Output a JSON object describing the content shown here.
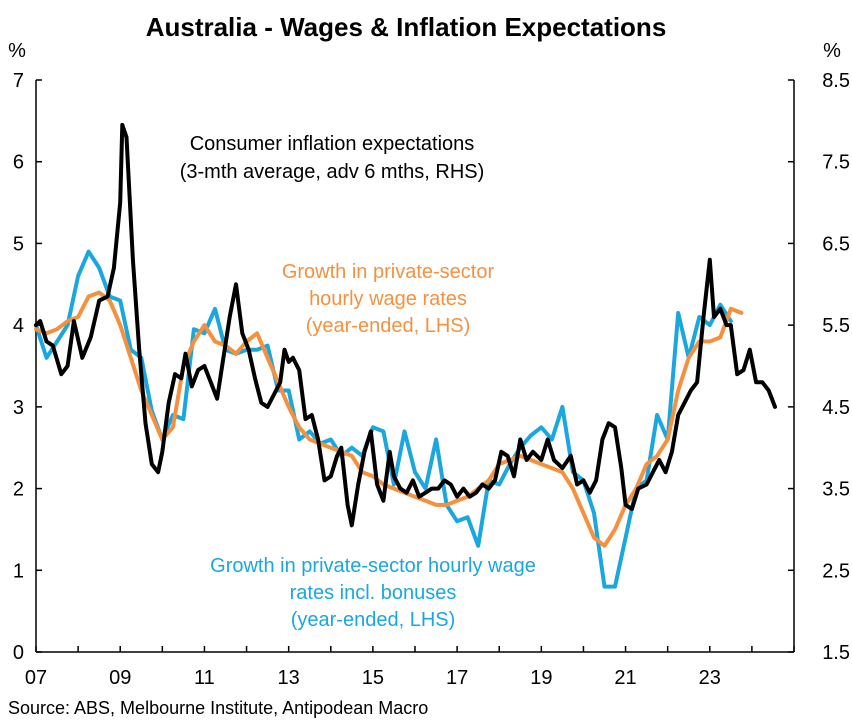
{
  "chart_data": {
    "type": "line",
    "title": "Australia - Wages & Inflation Expectations",
    "source": "Source: ABS, Melbourne Institute, Antipodean Macro",
    "left_axis": {
      "unit": "%",
      "range": [
        0,
        7
      ],
      "ticks": [
        "0",
        "1",
        "2",
        "3",
        "4",
        "5",
        "6",
        "7"
      ]
    },
    "right_axis": {
      "unit": "%",
      "range": [
        1.5,
        8.5
      ],
      "ticks": [
        "1.5",
        "2.5",
        "3.5",
        "4.5",
        "5.5",
        "6.5",
        "7.5",
        "8.5"
      ]
    },
    "x_axis": {
      "range": [
        2007,
        2025
      ],
      "ticks": [
        {
          "label": "07",
          "value": 2007
        },
        {
          "label": "09",
          "value": 2009
        },
        {
          "label": "11",
          "value": 2011
        },
        {
          "label": "13",
          "value": 2013
        },
        {
          "label": "15",
          "value": 2015
        },
        {
          "label": "17",
          "value": 2017
        },
        {
          "label": "19",
          "value": 2019
        },
        {
          "label": "21",
          "value": 2021
        },
        {
          "label": "23",
          "value": 2023
        }
      ]
    },
    "series": [
      {
        "name": "Growth in private-sector hourly wage rates incl. bonuses (year-ended, LHS)",
        "axis": "left",
        "color": "#1aa7e0",
        "points": [
          [
            2007.0,
            4.0
          ],
          [
            2007.25,
            3.6
          ],
          [
            2007.5,
            3.8
          ],
          [
            2007.75,
            4.0
          ],
          [
            2008.0,
            4.6
          ],
          [
            2008.25,
            4.9
          ],
          [
            2008.5,
            4.7
          ],
          [
            2008.75,
            4.35
          ],
          [
            2009.0,
            4.3
          ],
          [
            2009.25,
            3.7
          ],
          [
            2009.5,
            3.6
          ],
          [
            2009.75,
            2.95
          ],
          [
            2010.0,
            2.6
          ],
          [
            2010.25,
            2.9
          ],
          [
            2010.5,
            2.85
          ],
          [
            2010.75,
            3.95
          ],
          [
            2011.0,
            3.9
          ],
          [
            2011.25,
            4.2
          ],
          [
            2011.5,
            3.7
          ],
          [
            2011.75,
            3.65
          ],
          [
            2012.0,
            3.7
          ],
          [
            2012.25,
            3.7
          ],
          [
            2012.5,
            3.75
          ],
          [
            2012.75,
            3.2
          ],
          [
            2013.0,
            3.2
          ],
          [
            2013.25,
            2.6
          ],
          [
            2013.5,
            2.7
          ],
          [
            2013.75,
            2.55
          ],
          [
            2014.0,
            2.6
          ],
          [
            2014.25,
            2.4
          ],
          [
            2014.5,
            2.5
          ],
          [
            2014.75,
            2.4
          ],
          [
            2015.0,
            2.75
          ],
          [
            2015.25,
            2.7
          ],
          [
            2015.5,
            2.05
          ],
          [
            2015.75,
            2.7
          ],
          [
            2016.0,
            2.2
          ],
          [
            2016.25,
            2.0
          ],
          [
            2016.5,
            2.6
          ],
          [
            2016.75,
            1.8
          ],
          [
            2017.0,
            1.6
          ],
          [
            2017.25,
            1.65
          ],
          [
            2017.5,
            1.3
          ],
          [
            2017.75,
            2.1
          ],
          [
            2018.0,
            2.05
          ],
          [
            2018.25,
            2.3
          ],
          [
            2018.5,
            2.5
          ],
          [
            2018.75,
            2.65
          ],
          [
            2019.0,
            2.75
          ],
          [
            2019.25,
            2.6
          ],
          [
            2019.5,
            3.0
          ],
          [
            2019.75,
            2.2
          ],
          [
            2020.0,
            2.1
          ],
          [
            2020.25,
            1.7
          ],
          [
            2020.5,
            0.8
          ],
          [
            2020.75,
            0.8
          ],
          [
            2021.0,
            1.4
          ],
          [
            2021.25,
            2.0
          ],
          [
            2021.5,
            2.1
          ],
          [
            2021.75,
            2.9
          ],
          [
            2022.0,
            2.6
          ],
          [
            2022.25,
            4.15
          ],
          [
            2022.5,
            3.6
          ],
          [
            2022.75,
            4.1
          ],
          [
            2023.0,
            4.0
          ],
          [
            2023.25,
            4.25
          ],
          [
            2023.5,
            4.05
          ]
        ]
      },
      {
        "name": "Growth in private-sector hourly wage rates (year-ended, LHS)",
        "axis": "left",
        "color": "#f5913e",
        "points": [
          [
            2007.0,
            3.95
          ],
          [
            2007.25,
            3.9
          ],
          [
            2007.5,
            3.95
          ],
          [
            2007.75,
            4.05
          ],
          [
            2008.0,
            4.1
          ],
          [
            2008.25,
            4.35
          ],
          [
            2008.5,
            4.4
          ],
          [
            2008.75,
            4.3
          ],
          [
            2009.0,
            4.0
          ],
          [
            2009.25,
            3.6
          ],
          [
            2009.5,
            3.2
          ],
          [
            2009.75,
            2.9
          ],
          [
            2010.0,
            2.6
          ],
          [
            2010.25,
            2.75
          ],
          [
            2010.5,
            3.5
          ],
          [
            2010.75,
            3.8
          ],
          [
            2011.0,
            4.0
          ],
          [
            2011.25,
            3.8
          ],
          [
            2011.5,
            3.75
          ],
          [
            2011.75,
            3.65
          ],
          [
            2012.0,
            3.8
          ],
          [
            2012.25,
            3.9
          ],
          [
            2012.5,
            3.6
          ],
          [
            2012.75,
            3.3
          ],
          [
            2013.0,
            3.0
          ],
          [
            2013.25,
            2.75
          ],
          [
            2013.5,
            2.6
          ],
          [
            2013.75,
            2.55
          ],
          [
            2014.0,
            2.5
          ],
          [
            2014.25,
            2.45
          ],
          [
            2014.5,
            2.4
          ],
          [
            2014.75,
            2.2
          ],
          [
            2015.0,
            2.15
          ],
          [
            2015.25,
            2.05
          ],
          [
            2015.5,
            2.0
          ],
          [
            2015.75,
            1.95
          ],
          [
            2016.0,
            1.9
          ],
          [
            2016.25,
            1.85
          ],
          [
            2016.5,
            1.8
          ],
          [
            2016.75,
            1.8
          ],
          [
            2017.0,
            1.85
          ],
          [
            2017.25,
            1.9
          ],
          [
            2017.5,
            2.0
          ],
          [
            2017.75,
            2.1
          ],
          [
            2018.0,
            2.3
          ],
          [
            2018.25,
            2.35
          ],
          [
            2018.5,
            2.4
          ],
          [
            2018.75,
            2.35
          ],
          [
            2019.0,
            2.3
          ],
          [
            2019.25,
            2.25
          ],
          [
            2019.5,
            2.2
          ],
          [
            2019.75,
            2.0
          ],
          [
            2020.0,
            1.7
          ],
          [
            2020.25,
            1.4
          ],
          [
            2020.5,
            1.3
          ],
          [
            2020.75,
            1.5
          ],
          [
            2021.0,
            1.8
          ],
          [
            2021.25,
            2.0
          ],
          [
            2021.5,
            2.3
          ],
          [
            2021.75,
            2.4
          ],
          [
            2022.0,
            2.6
          ],
          [
            2022.25,
            3.2
          ],
          [
            2022.5,
            3.6
          ],
          [
            2022.75,
            3.8
          ],
          [
            2023.0,
            3.8
          ],
          [
            2023.25,
            3.85
          ],
          [
            2023.5,
            4.2
          ],
          [
            2023.75,
            4.15
          ]
        ]
      },
      {
        "name": "Consumer inflation expectations (3-mth average, adv 6 mths, RHS)",
        "axis": "right",
        "color": "#000000",
        "points": [
          [
            2007.0,
            5.5
          ],
          [
            2007.1,
            5.55
          ],
          [
            2007.25,
            5.3
          ],
          [
            2007.4,
            5.25
          ],
          [
            2007.6,
            4.9
          ],
          [
            2007.75,
            5.0
          ],
          [
            2007.9,
            5.55
          ],
          [
            2008.1,
            5.1
          ],
          [
            2008.3,
            5.35
          ],
          [
            2008.5,
            5.8
          ],
          [
            2008.7,
            5.85
          ],
          [
            2008.85,
            6.2
          ],
          [
            2009.0,
            7.0
          ],
          [
            2009.05,
            7.95
          ],
          [
            2009.15,
            7.8
          ],
          [
            2009.3,
            6.3
          ],
          [
            2009.45,
            5.2
          ],
          [
            2009.6,
            4.3
          ],
          [
            2009.75,
            3.8
          ],
          [
            2009.9,
            3.7
          ],
          [
            2010.0,
            3.95
          ],
          [
            2010.15,
            4.55
          ],
          [
            2010.3,
            4.9
          ],
          [
            2010.45,
            4.85
          ],
          [
            2010.55,
            5.15
          ],
          [
            2010.7,
            4.75
          ],
          [
            2010.85,
            4.95
          ],
          [
            2011.0,
            5.0
          ],
          [
            2011.15,
            4.8
          ],
          [
            2011.3,
            4.6
          ],
          [
            2011.45,
            5.1
          ],
          [
            2011.6,
            5.6
          ],
          [
            2011.75,
            6.0
          ],
          [
            2011.9,
            5.4
          ],
          [
            2012.05,
            5.2
          ],
          [
            2012.2,
            4.85
          ],
          [
            2012.35,
            4.55
          ],
          [
            2012.5,
            4.5
          ],
          [
            2012.65,
            4.65
          ],
          [
            2012.8,
            4.8
          ],
          [
            2012.9,
            5.2
          ],
          [
            2013.0,
            5.05
          ],
          [
            2013.1,
            5.1
          ],
          [
            2013.25,
            4.95
          ],
          [
            2013.4,
            4.35
          ],
          [
            2013.55,
            4.4
          ],
          [
            2013.7,
            4.1
          ],
          [
            2013.85,
            3.6
          ],
          [
            2014.0,
            3.65
          ],
          [
            2014.15,
            3.9
          ],
          [
            2014.25,
            4.0
          ],
          [
            2014.4,
            3.3
          ],
          [
            2014.5,
            3.05
          ],
          [
            2014.65,
            3.55
          ],
          [
            2014.8,
            3.95
          ],
          [
            2014.95,
            4.2
          ],
          [
            2015.1,
            3.55
          ],
          [
            2015.25,
            3.35
          ],
          [
            2015.4,
            3.95
          ],
          [
            2015.5,
            3.65
          ],
          [
            2015.65,
            3.5
          ],
          [
            2015.8,
            3.45
          ],
          [
            2015.95,
            3.6
          ],
          [
            2016.1,
            3.4
          ],
          [
            2016.25,
            3.45
          ],
          [
            2016.4,
            3.5
          ],
          [
            2016.55,
            3.5
          ],
          [
            2016.7,
            3.6
          ],
          [
            2016.85,
            3.55
          ],
          [
            2017.0,
            3.4
          ],
          [
            2017.15,
            3.5
          ],
          [
            2017.3,
            3.4
          ],
          [
            2017.45,
            3.45
          ],
          [
            2017.6,
            3.55
          ],
          [
            2017.75,
            3.5
          ],
          [
            2017.9,
            3.6
          ],
          [
            2018.05,
            3.95
          ],
          [
            2018.2,
            3.9
          ],
          [
            2018.35,
            3.65
          ],
          [
            2018.5,
            4.1
          ],
          [
            2018.65,
            3.85
          ],
          [
            2018.8,
            3.95
          ],
          [
            2019.0,
            3.85
          ],
          [
            2019.15,
            4.1
          ],
          [
            2019.3,
            3.85
          ],
          [
            2019.5,
            3.75
          ],
          [
            2019.7,
            3.9
          ],
          [
            2019.85,
            3.55
          ],
          [
            2020.0,
            3.6
          ],
          [
            2020.15,
            3.45
          ],
          [
            2020.3,
            3.6
          ],
          [
            2020.45,
            4.1
          ],
          [
            2020.6,
            4.3
          ],
          [
            2020.75,
            4.25
          ],
          [
            2020.9,
            3.75
          ],
          [
            2021.0,
            3.3
          ],
          [
            2021.15,
            3.25
          ],
          [
            2021.3,
            3.5
          ],
          [
            2021.5,
            3.55
          ],
          [
            2021.65,
            3.7
          ],
          [
            2021.8,
            3.85
          ],
          [
            2021.95,
            3.7
          ],
          [
            2022.1,
            3.95
          ],
          [
            2022.25,
            4.4
          ],
          [
            2022.4,
            4.55
          ],
          [
            2022.55,
            4.7
          ],
          [
            2022.7,
            4.8
          ],
          [
            2022.85,
            5.6
          ],
          [
            2023.0,
            6.3
          ],
          [
            2023.1,
            5.6
          ],
          [
            2023.25,
            5.7
          ],
          [
            2023.4,
            5.5
          ],
          [
            2023.5,
            5.5
          ],
          [
            2023.65,
            4.9
          ],
          [
            2023.8,
            4.95
          ],
          [
            2023.95,
            5.2
          ],
          [
            2024.1,
            4.8
          ],
          [
            2024.25,
            4.8
          ],
          [
            2024.4,
            4.7
          ],
          [
            2024.55,
            4.5
          ]
        ]
      }
    ],
    "annotations": {
      "inflation_expectations": [
        "Consumer inflation expectations",
        "(3-mth average, adv 6 mths, RHS)"
      ],
      "wage_rates": [
        "Growth in private-sector",
        "hourly wage rates",
        "(year-ended, LHS)"
      ],
      "wage_rates_bonuses": [
        "Growth in private-sector hourly wage",
        "rates incl. bonuses",
        "(year-ended, LHS)"
      ]
    }
  }
}
